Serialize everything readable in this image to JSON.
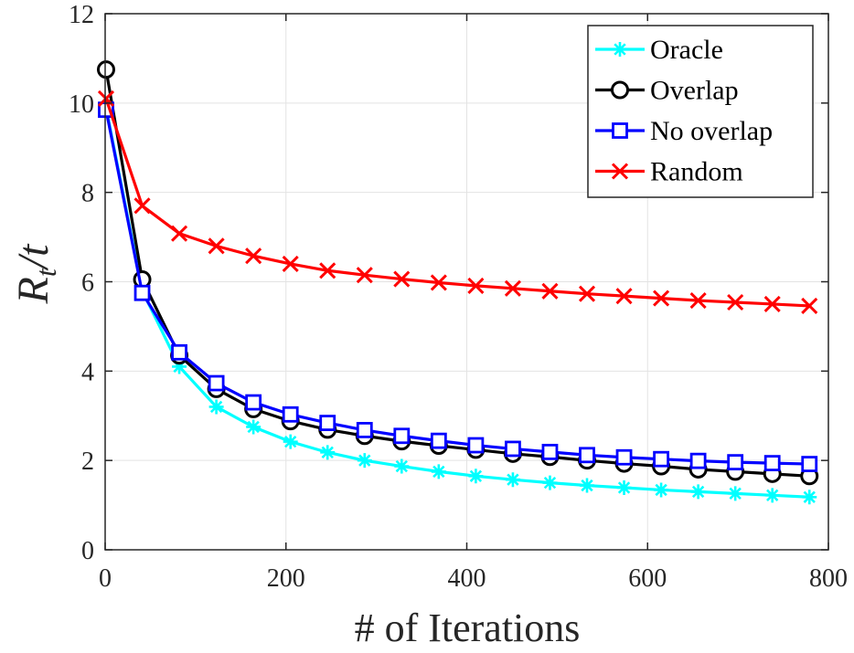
{
  "chart_data": {
    "type": "line",
    "title": "",
    "xlabel": "# of Iterations",
    "ylabel": {
      "main": "R",
      "sub": "t",
      "rest": "/t"
    },
    "xlim": [
      0,
      800
    ],
    "ylim": [
      0,
      12
    ],
    "xticks": [
      0,
      200,
      400,
      600,
      800
    ],
    "yticks": [
      0,
      2,
      4,
      6,
      8,
      10,
      12
    ],
    "grid": true,
    "legend_position": "top-right",
    "x": [
      1,
      41,
      82,
      123,
      164,
      205,
      246,
      287,
      328,
      369,
      410,
      451,
      492,
      533,
      574,
      615,
      656,
      697,
      738,
      779
    ],
    "series": [
      {
        "name": "Oracle",
        "color": "#00ffff",
        "marker": "asterisk",
        "values": [
          9.9,
          5.8,
          4.1,
          3.2,
          2.75,
          2.42,
          2.18,
          2.0,
          1.87,
          1.75,
          1.65,
          1.57,
          1.5,
          1.44,
          1.39,
          1.34,
          1.3,
          1.26,
          1.22,
          1.18
        ]
      },
      {
        "name": "Overlap",
        "color": "#000000",
        "marker": "circle",
        "values": [
          10.75,
          6.05,
          4.35,
          3.6,
          3.15,
          2.88,
          2.69,
          2.55,
          2.43,
          2.33,
          2.24,
          2.15,
          2.08,
          2.0,
          1.93,
          1.87,
          1.8,
          1.75,
          1.7,
          1.65
        ]
      },
      {
        "name": "No overlap",
        "color": "#0000ff",
        "marker": "square",
        "values": [
          9.85,
          5.75,
          4.42,
          3.73,
          3.3,
          3.03,
          2.84,
          2.68,
          2.55,
          2.44,
          2.34,
          2.26,
          2.19,
          2.12,
          2.07,
          2.03,
          1.99,
          1.96,
          1.94,
          1.92
        ]
      },
      {
        "name": "Random",
        "color": "#ff0000",
        "marker": "x",
        "values": [
          10.1,
          7.7,
          7.08,
          6.8,
          6.58,
          6.4,
          6.25,
          6.15,
          6.06,
          5.98,
          5.91,
          5.85,
          5.79,
          5.73,
          5.68,
          5.63,
          5.58,
          5.54,
          5.5,
          5.46
        ]
      }
    ]
  }
}
